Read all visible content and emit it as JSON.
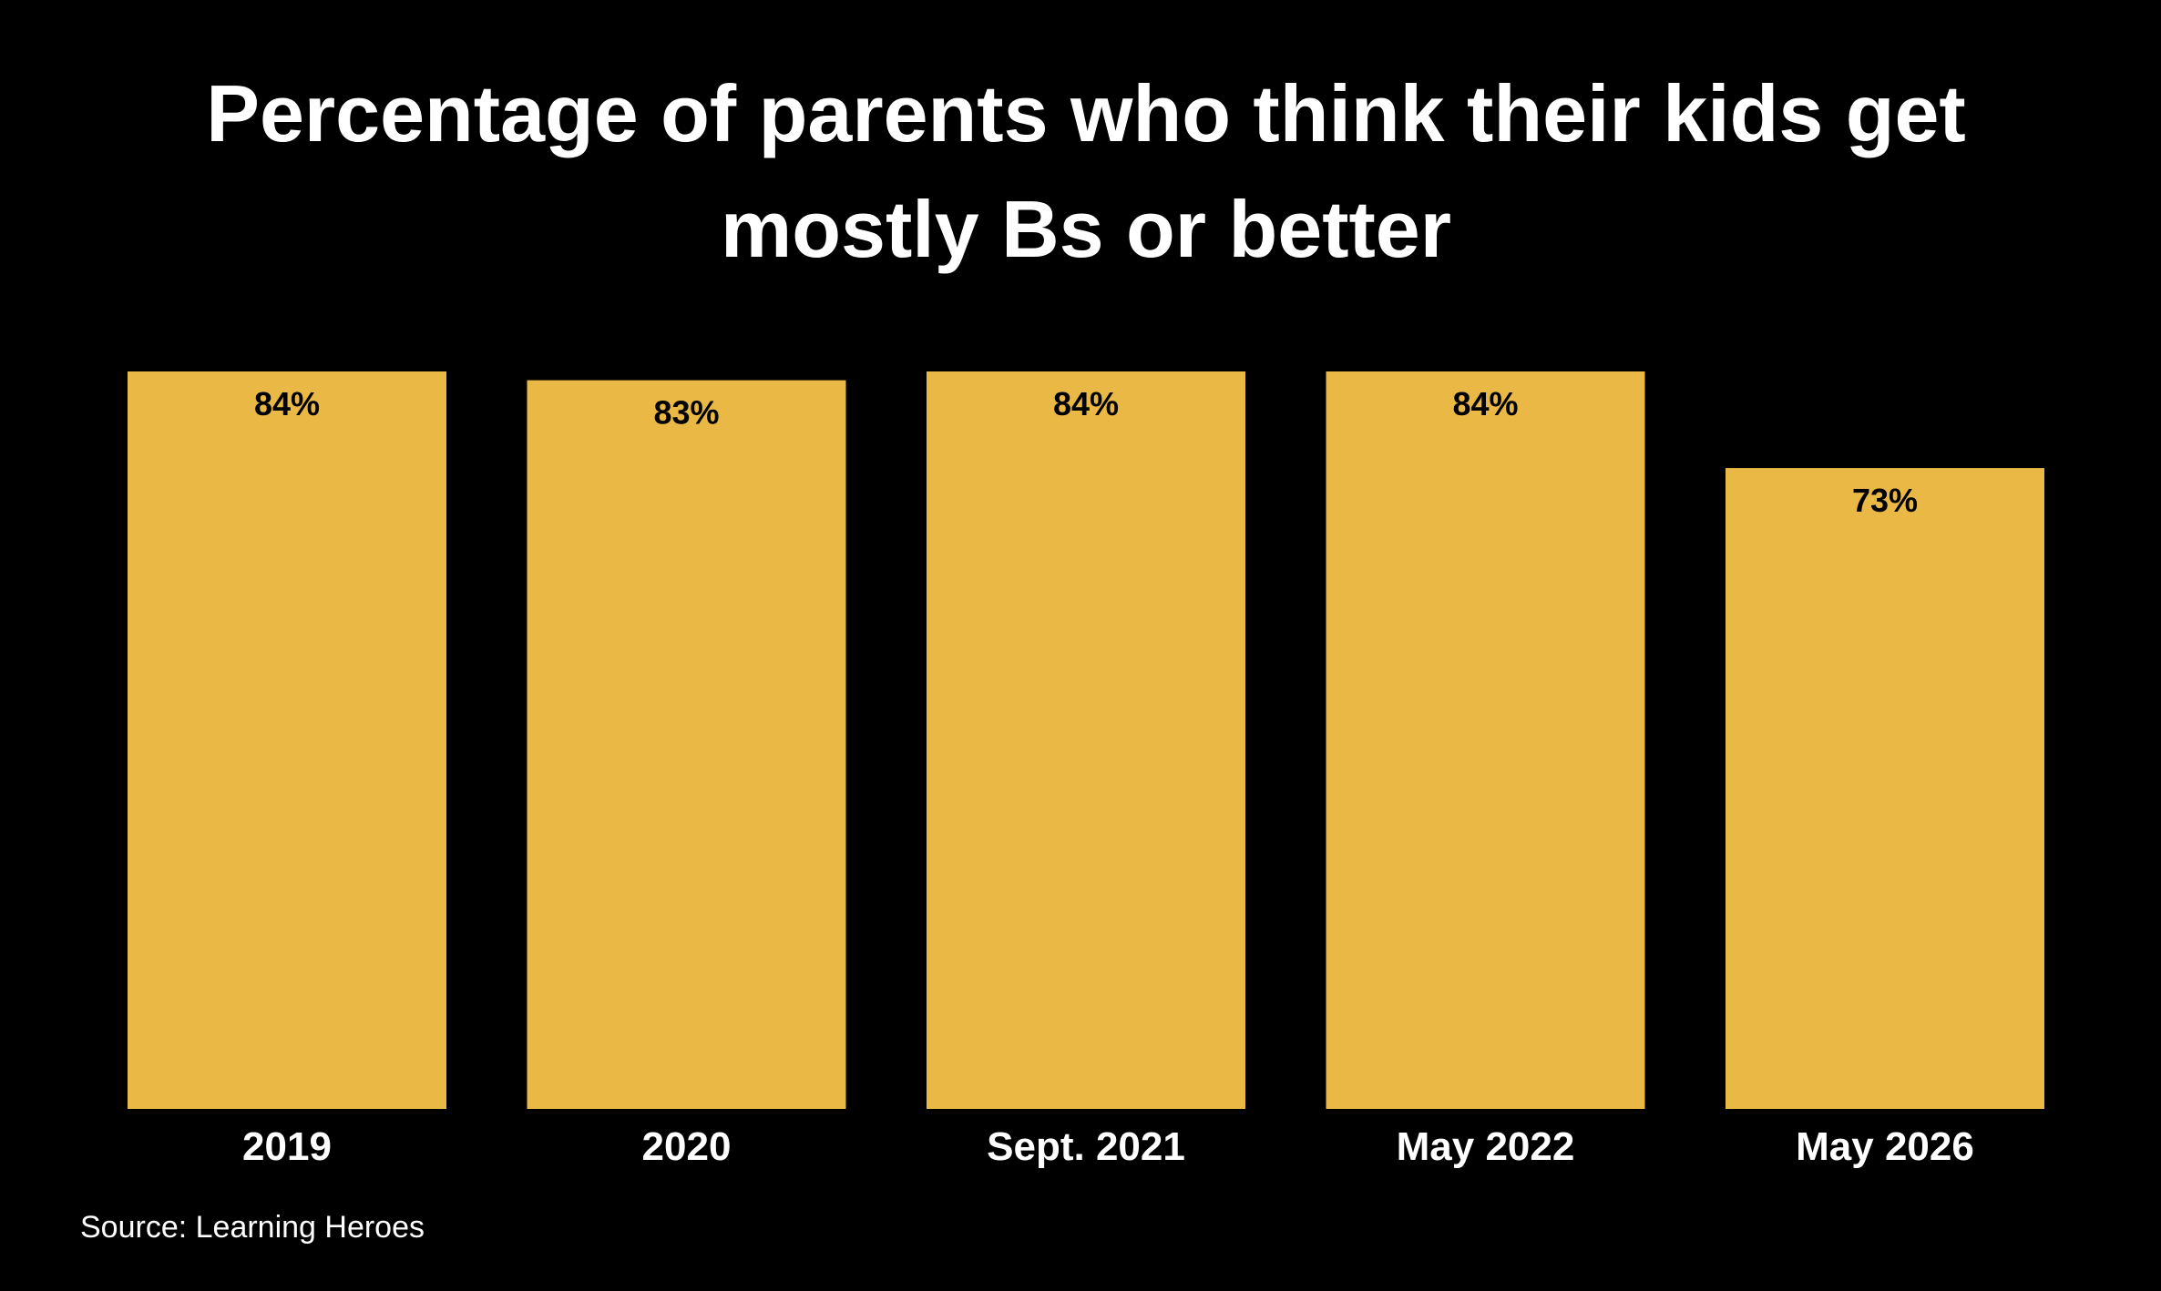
{
  "chart_data": {
    "type": "bar",
    "title_lines": [
      "Percentage of parents who think their kids get",
      "mostly Bs or better"
    ],
    "categories": [
      "2019",
      "2020",
      "Sept. 2021",
      "May 2022",
      "May 2026"
    ],
    "values": [
      84,
      83,
      84,
      84,
      73
    ],
    "value_labels": [
      "84%",
      "83%",
      "84%",
      "84%",
      "73%"
    ],
    "ylim": [
      0,
      84
    ],
    "grid": false,
    "bar_color": "#EAB945",
    "background_color": "#000000",
    "source": "Source: Learning Heroes"
  }
}
